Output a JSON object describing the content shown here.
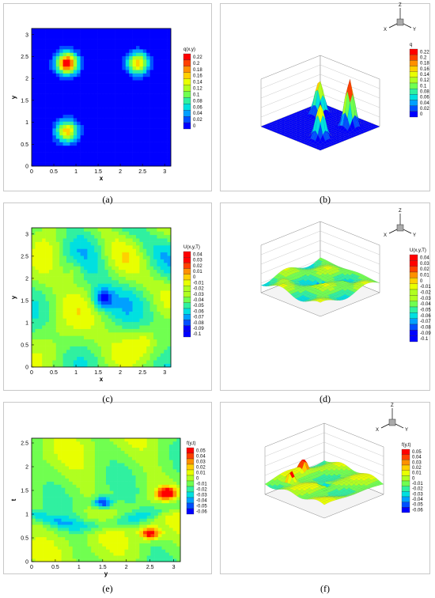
{
  "captions": [
    "(a)",
    "(b)",
    "(c)",
    "(d)",
    "(e)",
    "(f)"
  ],
  "colors": {
    "scale": [
      "#0000ff",
      "#0050ff",
      "#00a0ff",
      "#00e0e0",
      "#30f0a0",
      "#70ff50",
      "#b0ff20",
      "#e8ff00",
      "#ffd000",
      "#ff9000",
      "#ff4000",
      "#ff0000"
    ]
  },
  "chart_data": [
    {
      "id": "a",
      "type": "heatmap",
      "xlabel": "x",
      "ylabel": "y",
      "xlim": [
        0,
        3.14
      ],
      "ylim": [
        0,
        3.14
      ],
      "xticks": [
        "0",
        "0.5",
        "1",
        "1.5",
        "2",
        "2.5",
        "3"
      ],
      "yticks": [
        "0",
        "0.5",
        "1",
        "1.5",
        "2",
        "2.5",
        "3"
      ],
      "legend_title": "q(x,y)",
      "legend_levels": [
        "0.22",
        "0.2",
        "0.18",
        "0.16",
        "0.14",
        "0.12",
        "0.1",
        "0.08",
        "0.06",
        "0.04",
        "0.02",
        "0"
      ],
      "peaks": [
        {
          "x": 0.8,
          "y": 2.35,
          "value": 0.22
        },
        {
          "x": 2.4,
          "y": 2.35,
          "value": 0.16
        },
        {
          "x": 0.8,
          "y": 0.8,
          "value": 0.16
        }
      ]
    },
    {
      "id": "b",
      "type": "surface",
      "legend_title": "q",
      "legend_levels": [
        "0.22",
        "0.2",
        "0.18",
        "0.16",
        "0.14",
        "0.12",
        "0.1",
        "0.08",
        "0.06",
        "0.04",
        "0.02",
        "0"
      ],
      "axis_labels": {
        "x": "X",
        "y": "Y",
        "z": "Z"
      }
    },
    {
      "id": "c",
      "type": "heatmap",
      "xlabel": "x",
      "ylabel": "y",
      "xlim": [
        0,
        3.14
      ],
      "ylim": [
        0,
        3.14
      ],
      "xticks": [
        "0",
        "0.5",
        "1",
        "1.5",
        "2",
        "2.5",
        "3"
      ],
      "yticks": [
        "0",
        "0.5",
        "1",
        "1.5",
        "2",
        "2.5",
        "3"
      ],
      "legend_title": "U(x,y,T)",
      "legend_levels": [
        "0.04",
        "0.03",
        "0.02",
        "0.01",
        "0",
        "-0.01",
        "-0.02",
        "-0.03",
        "-0.04",
        "-0.05",
        "-0.06",
        "-0.07",
        "-0.08",
        "-0.09",
        "-0.1"
      ],
      "peaks": [
        {
          "x": 1.0,
          "y": 2.2,
          "value": 0.04
        },
        {
          "x": 1.6,
          "y": 1.55,
          "value": -0.1
        },
        {
          "x": 2.55,
          "y": 0.6,
          "value": 0.03
        }
      ]
    },
    {
      "id": "d",
      "type": "surface",
      "legend_title": "U(x,y,T)",
      "legend_levels": [
        "0.04",
        "0.03",
        "0.02",
        "0.01",
        "0",
        "-0.01",
        "-0.02",
        "-0.03",
        "-0.04",
        "-0.05",
        "-0.06",
        "-0.07",
        "-0.08",
        "-0.09",
        "-0.1"
      ],
      "axis_labels": {
        "x": "X",
        "y": "Y",
        "z": "Z"
      }
    },
    {
      "id": "e",
      "type": "heatmap",
      "xlabel": "y",
      "ylabel": "t",
      "xlim": [
        0,
        3.14
      ],
      "ylim": [
        0,
        2.6
      ],
      "xticks": [
        "0",
        "0.5",
        "1",
        "1.5",
        "2",
        "2.5",
        "3"
      ],
      "yticks": [
        "0",
        "0.5",
        "1",
        "1.5",
        "2",
        "2.5"
      ],
      "legend_title": "f(y,t)",
      "legend_levels": [
        "0.05",
        "0.04",
        "0.03",
        "0.02",
        "0.01",
        "0",
        "-0.01",
        "-0.02",
        "-0.03",
        "-0.04",
        "-0.05",
        "-0.06"
      ],
      "peaks": [
        {
          "x": 2.85,
          "y": 1.45,
          "value": 0.05
        },
        {
          "x": 2.5,
          "y": 0.6,
          "value": 0.04
        },
        {
          "x": 1.5,
          "y": 1.25,
          "value": -0.06
        }
      ]
    },
    {
      "id": "f",
      "type": "surface",
      "legend_title": "f(y,t)",
      "legend_levels": [
        "0.05",
        "0.04",
        "0.03",
        "0.02",
        "0.01",
        "0",
        "-0.01",
        "-0.02",
        "-0.03",
        "-0.04",
        "-0.05",
        "-0.06"
      ],
      "axis_labels": {
        "x": "X",
        "y": "Y",
        "z": "Z"
      }
    }
  ]
}
